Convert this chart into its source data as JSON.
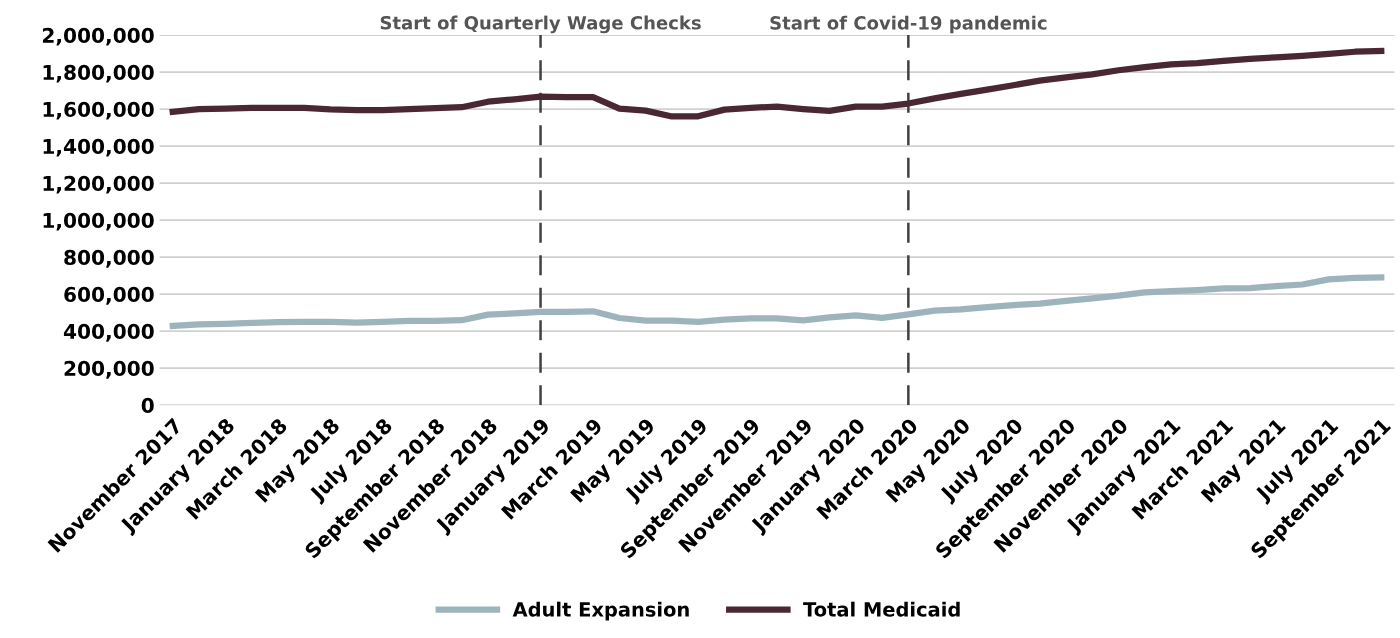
{
  "chart_data": {
    "type": "line",
    "categories": [
      "November 2017",
      null,
      "January 2018",
      null,
      "March 2018",
      null,
      "May 2018",
      null,
      "July 2018",
      null,
      "September 2018",
      null,
      "November 2018",
      null,
      "January 2019",
      null,
      "March 2019",
      null,
      "May 2019",
      null,
      "July 2019",
      null,
      "September 2019",
      null,
      "November 2019",
      null,
      "January 2020",
      null,
      "March 2020",
      null,
      "May 2020",
      null,
      "July 2020",
      null,
      "September 2020",
      null,
      "November 2020",
      null,
      "January 2021",
      null,
      "March 2021",
      null,
      "May 2021",
      null,
      "July 2021",
      null,
      "September 2021"
    ],
    "series": [
      {
        "name": "Adult Expansion",
        "color": "#9db4bc",
        "values": [
          428000,
          437000,
          439000,
          444000,
          448000,
          450000,
          450000,
          446000,
          450000,
          455000,
          455000,
          459000,
          489000,
          496000,
          504000,
          504000,
          507000,
          471000,
          457000,
          457000,
          450000,
          462000,
          469000,
          469000,
          458000,
          474000,
          485000,
          472000,
          490000,
          511000,
          517000,
          530000,
          541000,
          549000,
          564000,
          577000,
          592000,
          609000,
          616000,
          622000,
          631000,
          632000,
          643000,
          652000,
          680000,
          688000,
          690000
        ]
      },
      {
        "name": "Total Medicaid",
        "color": "#4a2832",
        "values": [
          1585000,
          1600000,
          1602000,
          1606000,
          1606000,
          1606000,
          1598000,
          1594000,
          1594000,
          1600000,
          1605000,
          1610000,
          1640000,
          1653000,
          1667000,
          1665000,
          1665000,
          1603000,
          1592000,
          1560000,
          1561000,
          1597000,
          1607000,
          1613000,
          1600000,
          1590000,
          1613000,
          1613000,
          1630000,
          1658000,
          1682000,
          1705000,
          1729000,
          1754000,
          1771000,
          1788000,
          1810000,
          1827000,
          1842000,
          1848000,
          1861000,
          1872000,
          1880000,
          1888000,
          1899000,
          1910000,
          1914000
        ]
      }
    ],
    "ylim": [
      0,
      2000000
    ],
    "yticks": [
      {
        "value": 0,
        "label": "0"
      },
      {
        "value": 200000,
        "label": "200,000"
      },
      {
        "value": 400000,
        "label": "400,000"
      },
      {
        "value": 600000,
        "label": "600,000"
      },
      {
        "value": 800000,
        "label": "800,000"
      },
      {
        "value": 1000000,
        "label": "1,000,000"
      },
      {
        "value": 1200000,
        "label": "1,200,000"
      },
      {
        "value": 1400000,
        "label": "1,400,000"
      },
      {
        "value": 1600000,
        "label": "1,600,000"
      },
      {
        "value": 1800000,
        "label": "1,800,000"
      },
      {
        "value": 2000000,
        "label": "2,000,000"
      }
    ],
    "ref_lines": [
      {
        "axis": "x",
        "value": "January 2019",
        "label": "Start of Quarterly Wage Checks",
        "color": "#404040",
        "line_style": "dashed"
      },
      {
        "axis": "x",
        "value": "March 2020",
        "label": "Start of Covid-19 pandemic",
        "color": "#404040",
        "line_style": "dashed"
      }
    ],
    "grid": "y",
    "legend": "bottom",
    "marker": "none",
    "line_style": "solid"
  }
}
